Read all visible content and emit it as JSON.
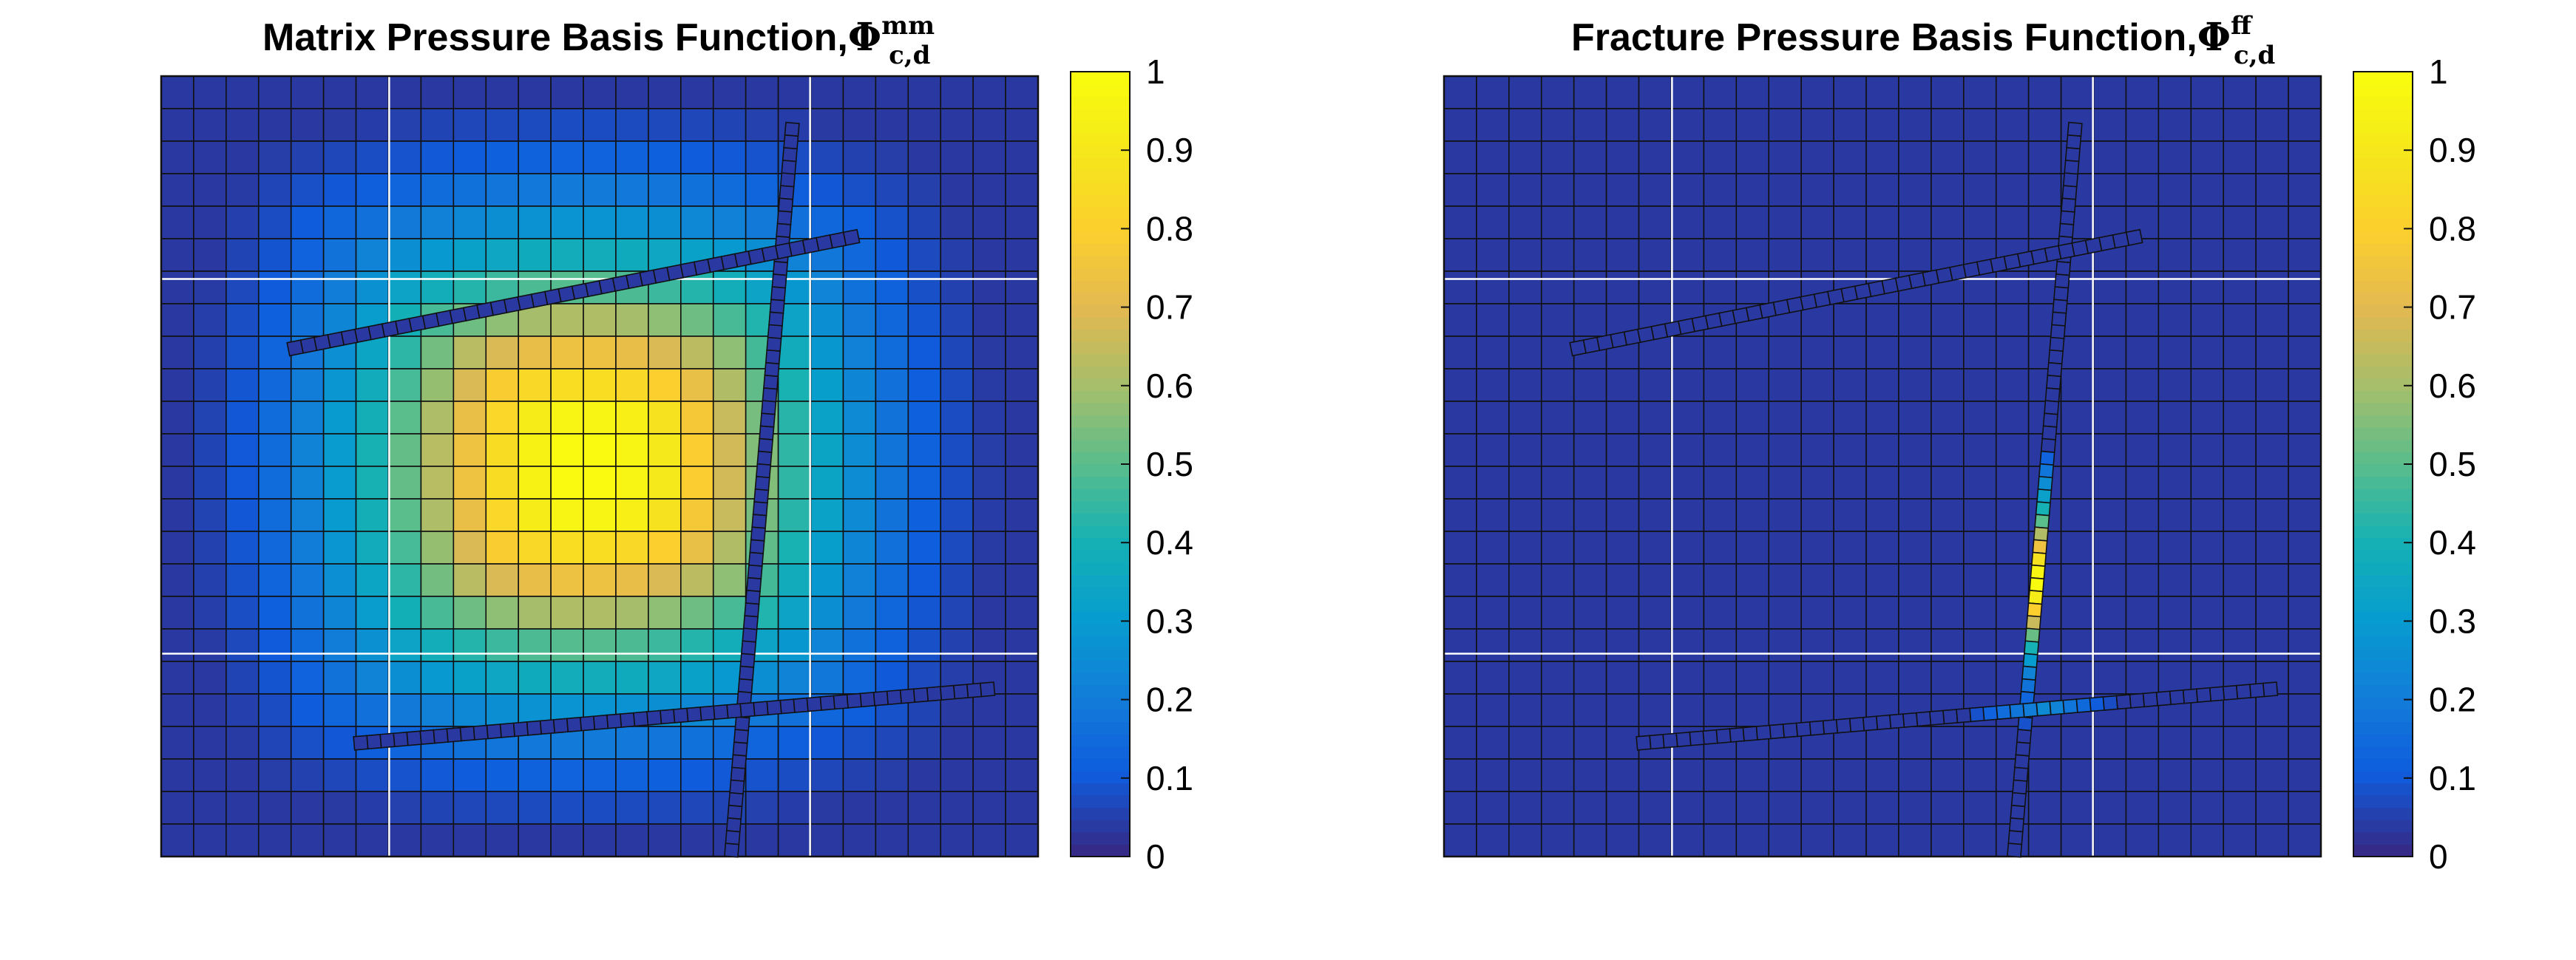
{
  "chart_data": [
    {
      "type": "heatmap",
      "title": "Matrix Pressure Basis Function,",
      "title_symbol": "Φ",
      "title_superscript": "mm",
      "title_subscript": "c,d",
      "grid_cells": [
        27,
        24
      ],
      "field": "gaussian",
      "peak_cell": [
        13,
        12
      ],
      "peak_value": 1.0,
      "fractures": [
        {
          "from": [
            0.72,
            0.06
          ],
          "to": [
            0.65,
            1.0
          ],
          "segments": 58,
          "values": "low"
        },
        {
          "from": [
            0.145,
            0.35
          ],
          "to": [
            0.795,
            0.205
          ],
          "segments": 42,
          "values": "low"
        },
        {
          "from": [
            0.22,
            0.855
          ],
          "to": [
            0.95,
            0.785
          ],
          "segments": 48,
          "values": "low"
        }
      ],
      "colorbar": {
        "min": 0,
        "max": 1,
        "ticks": [
          "0",
          "0.1",
          "0.2",
          "0.3",
          "0.4",
          "0.5",
          "0.6",
          "0.7",
          "0.8",
          "0.9",
          "1"
        ]
      },
      "colormap": "parula",
      "grid": true
    },
    {
      "type": "heatmap",
      "title": "Fracture Pressure Basis Function,",
      "title_symbol": "Φ",
      "title_superscript": "ff",
      "title_subscript": "c,d",
      "grid_cells": [
        27,
        24
      ],
      "field": "zero",
      "fractures": [
        {
          "from": [
            0.72,
            0.06
          ],
          "to": [
            0.65,
            1.0
          ],
          "segments": 58,
          "values": "peak",
          "peak_segment_values": {
            "26": 0.12,
            "27": 0.18,
            "28": 0.25,
            "29": 0.32,
            "30": 0.4,
            "31": 0.5,
            "32": 0.62,
            "33": 0.75,
            "34": 0.88,
            "35": 0.97,
            "36": 1.0,
            "37": 0.93,
            "38": 0.8,
            "39": 0.66,
            "40": 0.52,
            "41": 0.4,
            "42": 0.3,
            "43": 0.22,
            "44": 0.17,
            "45": 0.13,
            "46": 0.1,
            "47": 0.08
          }
        },
        {
          "from": [
            0.145,
            0.35
          ],
          "to": [
            0.795,
            0.205
          ],
          "segments": 42,
          "values": "zero"
        },
        {
          "from": [
            0.22,
            0.855
          ],
          "to": [
            0.95,
            0.785
          ],
          "segments": 48,
          "values": "cross",
          "peak_segment_values": {
            "25": 0.08,
            "26": 0.12,
            "27": 0.15,
            "28": 0.18,
            "29": 0.2,
            "30": 0.24,
            "31": 0.22,
            "32": 0.18,
            "33": 0.14,
            "34": 0.1,
            "35": 0.07
          }
        }
      ],
      "colorbar": {
        "min": 0,
        "max": 1,
        "ticks": [
          "0",
          "0.1",
          "0.2",
          "0.3",
          "0.4",
          "0.5",
          "0.6",
          "0.7",
          "0.8",
          "0.9",
          "1"
        ]
      },
      "colormap": "parula",
      "grid": true
    }
  ]
}
